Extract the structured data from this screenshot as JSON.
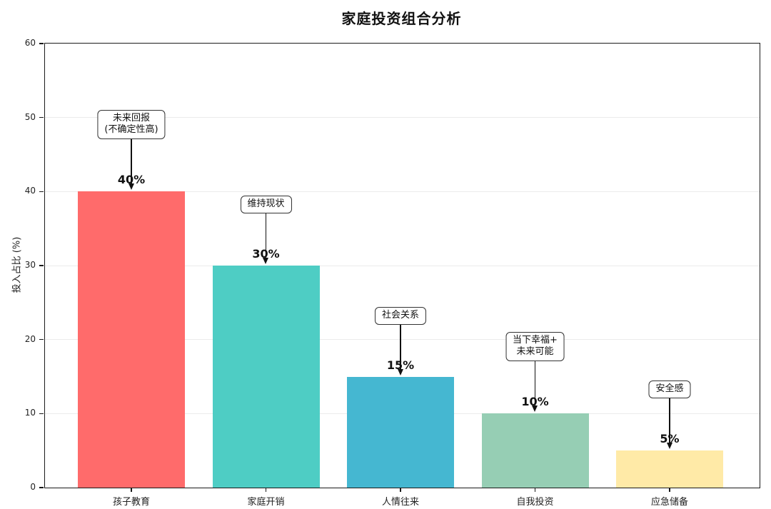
{
  "chart_data": {
    "type": "bar",
    "title": "家庭投资组合分析",
    "xlabel": "",
    "ylabel": "投入占比 (%)",
    "categories": [
      "孩子教育",
      "家庭开销",
      "人情往来",
      "自我投资",
      "应急储备"
    ],
    "values": [
      40,
      30,
      15,
      10,
      5
    ],
    "value_labels": [
      "40%",
      "30%",
      "15%",
      "10%",
      "5%"
    ],
    "annotations": [
      "未来回报\n(不确定性高)",
      "维持现状",
      "社会关系",
      "当下幸福+\n未来可能",
      "安全感"
    ],
    "bar_colors": [
      "#FF6B6B",
      "#4ECDC4",
      "#45B7D1",
      "#96CEB4",
      "#FFEAA7"
    ],
    "ylim": [
      0,
      60
    ],
    "yticks": [
      0,
      10,
      20,
      30,
      40,
      50,
      60
    ],
    "grid": "horizontal",
    "gridline_color": "#ebebeb",
    "legend": "none"
  }
}
